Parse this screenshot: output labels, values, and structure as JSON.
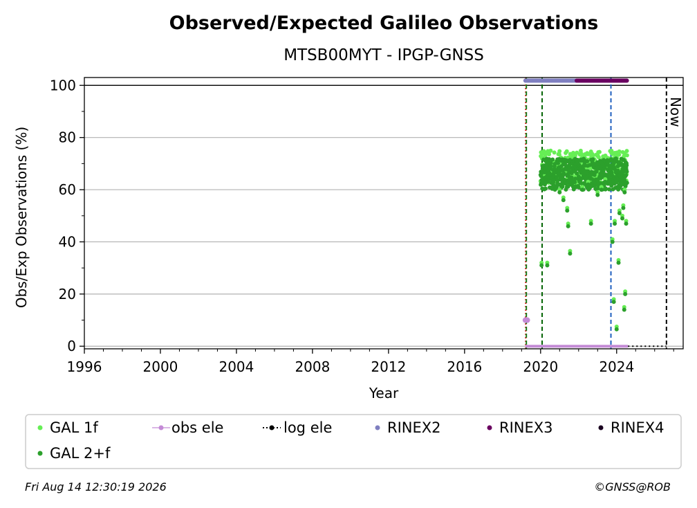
{
  "chart_data": {
    "type": "scatter",
    "title": "Observed/Expected Galileo Observations",
    "subtitle": "MTSB00MYT - IPGP-GNSS",
    "xlabel": "Year",
    "ylabel": "Obs/Exp Observations (%)",
    "xlim": [
      1996,
      2027.5
    ],
    "ylim": [
      -1,
      103
    ],
    "xticks": [
      1996,
      2000,
      2004,
      2008,
      2012,
      2016,
      2020,
      2024
    ],
    "yticks": [
      0,
      20,
      40,
      60,
      80,
      100
    ],
    "grid": "horizontal",
    "now_label": "Now",
    "now_year": 2026.62,
    "vertical_lines": [
      {
        "x": 2019.22,
        "color": "#dd0000",
        "style": "dotted"
      },
      {
        "x": 2019.25,
        "color": "#1a7a1a",
        "style": "dashed"
      },
      {
        "x": 2020.08,
        "color": "#006400",
        "style": "dashed"
      },
      {
        "x": 2023.7,
        "color": "#1f5fbf",
        "style": "dashed"
      },
      {
        "x": 2026.62,
        "color": "#000000",
        "style": "dashed"
      }
    ],
    "series": [
      {
        "name": "GAL 1f",
        "color": "#66ee55",
        "marker": "dot",
        "band": {
          "x": [
            2020.0,
            2024.55
          ],
          "y": [
            62,
            75
          ]
        }
      },
      {
        "name": "GAL 2+f",
        "color": "#2ca02c",
        "marker": "dot",
        "band": {
          "x": [
            2020.0,
            2024.55
          ],
          "y": [
            60,
            74
          ]
        },
        "outliers": [
          [
            2020.05,
            31
          ],
          [
            2020.35,
            31
          ],
          [
            2021.0,
            59
          ],
          [
            2021.2,
            56
          ],
          [
            2021.4,
            52
          ],
          [
            2021.45,
            46
          ],
          [
            2021.55,
            35.5
          ],
          [
            2022.2,
            60
          ],
          [
            2022.5,
            62
          ],
          [
            2022.65,
            47
          ],
          [
            2023.0,
            58
          ],
          [
            2023.2,
            60
          ],
          [
            2023.4,
            63
          ],
          [
            2023.78,
            40
          ],
          [
            2023.85,
            17
          ],
          [
            2023.9,
            47
          ],
          [
            2024.0,
            6.5
          ],
          [
            2024.1,
            32
          ],
          [
            2024.15,
            51
          ],
          [
            2024.3,
            49
          ],
          [
            2024.35,
            53
          ],
          [
            2024.4,
            14
          ],
          [
            2024.45,
            20
          ],
          [
            2024.5,
            47
          ],
          [
            2024.42,
            59
          ]
        ]
      },
      {
        "name": "obs ele",
        "color": "#c48bd6",
        "marker": "dot-line",
        "points": [
          [
            2019.2,
            10
          ],
          [
            2019.3,
            10
          ]
        ],
        "baseline": {
          "x": [
            2019.2,
            2024.6
          ],
          "y": 0
        }
      },
      {
        "name": "log ele",
        "color": "#000000",
        "marker": "dot-dotted-line",
        "baseline": {
          "x": [
            2024.6,
            2026.62
          ],
          "y": 0
        }
      },
      {
        "name": "RINEX2",
        "color": "#7f7fc0",
        "marker": "dot",
        "band": {
          "x": [
            2019.2,
            2021.9
          ],
          "y": 101.8
        }
      },
      {
        "name": "RINEX3",
        "color": "#6a0060",
        "marker": "dot",
        "band": {
          "x": [
            2021.9,
            2024.55
          ],
          "y": 101.8
        }
      },
      {
        "name": "RINEX4",
        "color": "#1a0020",
        "marker": "dot"
      }
    ],
    "legend_placement": "bottom"
  },
  "footer": {
    "timestamp": "Fri Aug 14 12:30:19 2026",
    "credit": "©GNSS@ROB"
  }
}
